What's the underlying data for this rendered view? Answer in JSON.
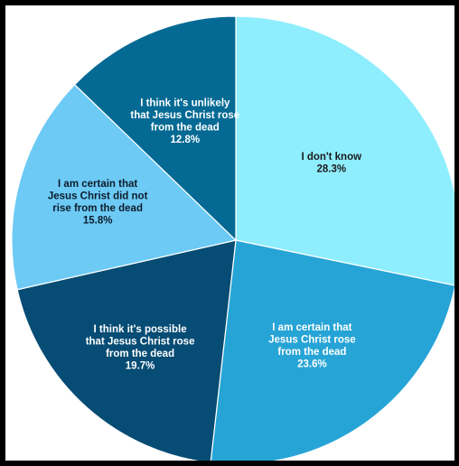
{
  "chart_data": {
    "type": "pie",
    "title": "",
    "slices": [
      {
        "label_lines": [
          "I don't know"
        ],
        "percent_label": "28.3%",
        "value": 28.3,
        "color": "#8feefe",
        "text_color": "#1b1b1b"
      },
      {
        "label_lines": [
          "I am certain that",
          "Jesus Christ rose",
          "from the dead"
        ],
        "percent_label": "23.6%",
        "value": 23.6,
        "color": "#27a4d6",
        "text_color": "#ffffff"
      },
      {
        "label_lines": [
          "I think it's possible",
          "that Jesus Christ rose",
          "from the dead"
        ],
        "percent_label": "19.7%",
        "value": 19.7,
        "color": "#064c74",
        "text_color": "#ffffff"
      },
      {
        "label_lines": [
          "I am certain that",
          "Jesus Christ did not",
          "rise from the dead"
        ],
        "percent_label": "15.8%",
        "value": 15.8,
        "color": "#6ccaf5",
        "text_color": "#0d1b2a"
      },
      {
        "label_lines": [
          "I think it's unlikely",
          "that Jesus Christ rose",
          "from the dead"
        ],
        "percent_label": "12.8%",
        "value": 12.8,
        "color": "#046a94",
        "text_color": "#ffffff"
      }
    ]
  }
}
